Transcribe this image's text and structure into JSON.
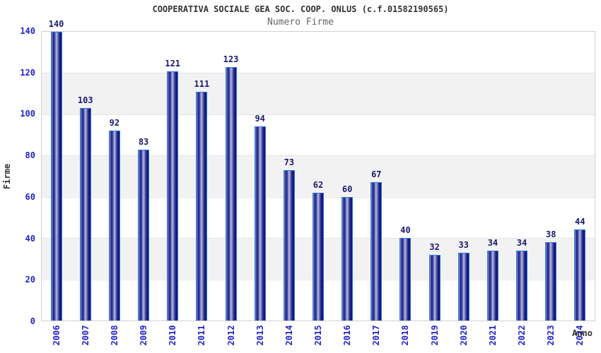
{
  "chart_data": {
    "type": "bar",
    "title": "COOPERATIVA SOCIALE GEA SOC. COOP. ONLUS (c.f.01582190565)",
    "subtitle": "Numero Firme",
    "xlabel": "Anno",
    "ylabel": "Firme",
    "categories": [
      "2006",
      "2007",
      "2008",
      "2009",
      "2010",
      "2011",
      "2012",
      "2013",
      "2014",
      "2015",
      "2016",
      "2017",
      "2018",
      "2019",
      "2020",
      "2021",
      "2022",
      "2023",
      "2024"
    ],
    "values": [
      140,
      103,
      92,
      83,
      121,
      111,
      123,
      94,
      73,
      62,
      60,
      67,
      40,
      32,
      33,
      34,
      34,
      38,
      44
    ],
    "ylim": [
      0,
      140
    ],
    "yticks": [
      0,
      20,
      40,
      60,
      80,
      100,
      120,
      140
    ],
    "grid": "horizontal-alternating-bands",
    "legend": "none",
    "colors": {
      "band": "#f2f2f2",
      "gridline": "#e3e3e3",
      "plot_border": "#d0d0d0",
      "bar_border": "#2e78e8",
      "bar_dark": "#181878",
      "bar_highlight": "#b7bddd",
      "axis_tick_label": "#2323cc",
      "value_label": "#191970",
      "title": "#333333",
      "subtitle": "#666666"
    }
  }
}
